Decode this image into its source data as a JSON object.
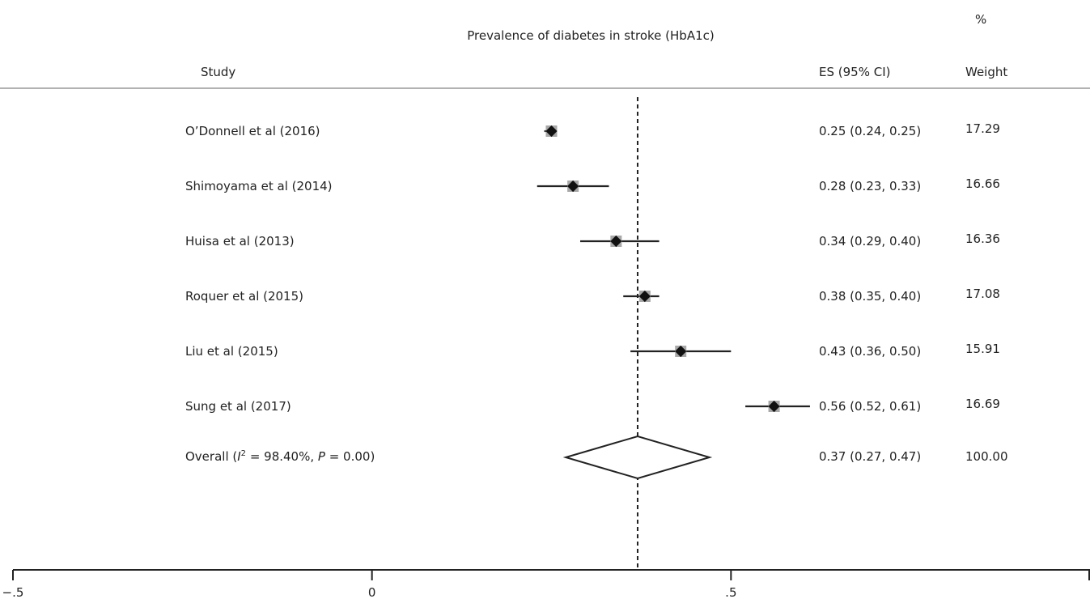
{
  "chart_data": {
    "type": "forest",
    "title": "Prevalence of diabetes in stroke (HbA1c)",
    "col_study": "Study",
    "col_es": "ES (95% CI)",
    "col_weight_top": "%",
    "col_weight": "Weight",
    "xlim": [
      -0.5,
      1.0
    ],
    "x_ticks": [
      {
        "value": -0.5,
        "label": "−.5"
      },
      {
        "value": 0,
        "label": "0"
      },
      {
        "value": 0.5,
        "label": ".5"
      }
    ],
    "reference_line": 0.37,
    "studies": [
      {
        "label": "O’Donnell et al (2016)",
        "es": 0.25,
        "lo": 0.24,
        "hi": 0.25,
        "es_text": "0.25 (0.24, 0.25)",
        "weight": "17.29"
      },
      {
        "label": "Shimoyama et al (2014)",
        "es": 0.28,
        "lo": 0.23,
        "hi": 0.33,
        "es_text": "0.28 (0.23, 0.33)",
        "weight": "16.66"
      },
      {
        "label": "Huisa et al (2013)",
        "es": 0.34,
        "lo": 0.29,
        "hi": 0.4,
        "es_text": "0.34 (0.29, 0.40)",
        "weight": "16.36"
      },
      {
        "label": "Roquer et al (2015)",
        "es": 0.38,
        "lo": 0.35,
        "hi": 0.4,
        "es_text": "0.38 (0.35, 0.40)",
        "weight": "17.08"
      },
      {
        "label": "Liu et al  (2015)",
        "es": 0.43,
        "lo": 0.36,
        "hi": 0.5,
        "es_text": "0.43 (0.36, 0.50)",
        "weight": "15.91"
      },
      {
        "label": "Sung et al  (2017)",
        "es": 0.56,
        "lo": 0.52,
        "hi": 0.61,
        "es_text": "0.56 (0.52, 0.61)",
        "weight": "16.69"
      }
    ],
    "overall": {
      "label_parts": [
        "Overall (",
        "I",
        "2",
        " = 98.40%, ",
        "P",
        " = 0.00)"
      ],
      "es": 0.37,
      "lo": 0.27,
      "hi": 0.47,
      "es_text": "0.37 (0.27, 0.47)",
      "weight": "100.00"
    }
  }
}
